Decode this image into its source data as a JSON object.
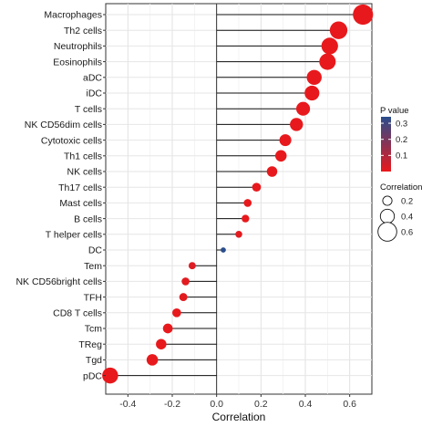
{
  "chart_data": {
    "type": "lollipop",
    "xlabel": "Correlation",
    "ylabel": "",
    "xlim": [
      -0.5,
      0.7
    ],
    "x_ticks": [
      -0.4,
      -0.2,
      0.0,
      0.2,
      0.4,
      0.6
    ],
    "x_tick_labels": [
      "-0.4",
      "-0.2",
      "0.0",
      "0.2",
      "0.4",
      "0.6"
    ],
    "grid": true,
    "categories": [
      "Macrophages",
      "Th2 cells",
      "Neutrophils",
      "Eosinophils",
      "aDC",
      "iDC",
      "T cells",
      "NK CD56dim cells",
      "Cytotoxic cells",
      "Th1 cells",
      "NK cells",
      "Th17 cells",
      "Mast cells",
      "B cells",
      "T helper cells",
      "DC",
      "Tem",
      "NK CD56bright cells",
      "TFH",
      "CD8 T cells",
      "Tcm",
      "TReg",
      "Tgd",
      "pDC"
    ],
    "values": [
      0.66,
      0.55,
      0.51,
      0.5,
      0.44,
      0.43,
      0.39,
      0.36,
      0.31,
      0.29,
      0.25,
      0.18,
      0.14,
      0.13,
      0.1,
      0.03,
      -0.11,
      -0.14,
      -0.15,
      -0.18,
      -0.22,
      -0.25,
      -0.29,
      -0.48
    ],
    "p_values": [
      0.0,
      0.0,
      0.0,
      0.0,
      0.0,
      0.0,
      0.0,
      0.0,
      0.0,
      0.0,
      0.0,
      0.0,
      0.0,
      0.0,
      0.01,
      0.34,
      0.02,
      0.01,
      0.01,
      0.0,
      0.0,
      0.0,
      0.0,
      0.0
    ],
    "legend_color": {
      "title": "P value",
      "ticks": [
        0.3,
        0.2,
        0.1
      ],
      "tick_labels": [
        "0.3",
        "0.2",
        "0.1"
      ],
      "range": [
        0.0,
        0.34
      ],
      "low_color": "#e8191c",
      "high_color": "#2a4d8c"
    },
    "legend_size": {
      "title": "Correlation",
      "values": [
        0.2,
        0.4,
        0.6
      ],
      "labels": [
        "0.2",
        "0.4",
        "0.6"
      ]
    },
    "legend_placement": "right"
  }
}
